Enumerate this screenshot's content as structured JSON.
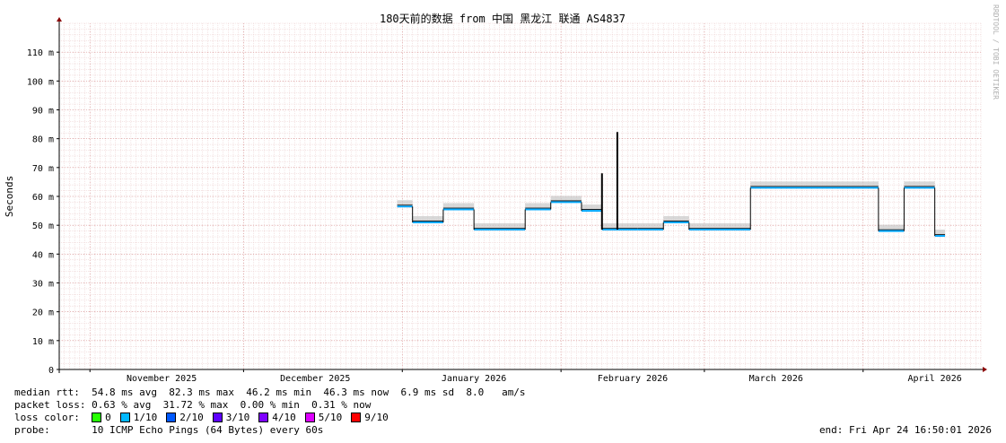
{
  "chart_data": {
    "type": "line",
    "title": "180天前的数据 from  中国 黑龙江 联通 AS4837",
    "ylabel": "Seconds",
    "watermark": "RRDTOOL / TOBI OETIKER",
    "ylim": [
      0,
      120
    ],
    "y_ticks": [
      {
        "value": 0,
        "label": "0"
      },
      {
        "value": 10,
        "label": "10 m"
      },
      {
        "value": 20,
        "label": "20 m"
      },
      {
        "value": 30,
        "label": "30 m"
      },
      {
        "value": 40,
        "label": "40 m"
      },
      {
        "value": 50,
        "label": "50 m"
      },
      {
        "value": 60,
        "label": "60 m"
      },
      {
        "value": 70,
        "label": "70 m"
      },
      {
        "value": 80,
        "label": "80 m"
      },
      {
        "value": 90,
        "label": "90 m"
      },
      {
        "value": 100,
        "label": "100 m"
      },
      {
        "value": 110,
        "label": "110 m"
      }
    ],
    "x_start": "2025-10-26",
    "x_end": "2026-04-24",
    "x_ticks": [
      {
        "date": "2025-11-15",
        "label": "November 2025"
      },
      {
        "date": "2025-12-15",
        "label": "December 2025"
      },
      {
        "date": "2026-01-15",
        "label": "January 2026"
      },
      {
        "date": "2026-02-15",
        "label": "February 2026"
      },
      {
        "date": "2026-03-15",
        "label": "March 2026"
      },
      {
        "date": "2026-04-15",
        "label": "April 2026"
      }
    ],
    "grid": true,
    "series": [
      {
        "color": "#00a8ff",
        "segments": [
          {
            "start": "2025-12-31",
            "end": "2026-01-03",
            "value": 56.5
          },
          {
            "start": "2026-01-03",
            "end": "2026-01-09",
            "value": 51
          },
          {
            "start": "2026-01-09",
            "end": "2026-01-15",
            "value": 55.5
          },
          {
            "start": "2026-01-15",
            "end": "2026-01-25",
            "value": 48.5
          },
          {
            "start": "2026-01-25",
            "end": "2026-01-30",
            "value": 55.5
          },
          {
            "start": "2026-01-30",
            "end": "2026-02-05",
            "value": 58
          },
          {
            "start": "2026-02-05",
            "end": "2026-02-09",
            "value": 55
          },
          {
            "start": "2026-02-09",
            "end": "2026-02-16",
            "value": 48.5
          },
          {
            "start": "2026-02-16",
            "end": "2026-02-21",
            "value": 48.5
          },
          {
            "start": "2026-02-21",
            "end": "2026-02-26",
            "value": 51
          },
          {
            "start": "2026-02-26",
            "end": "2026-03-10",
            "value": 48.5
          },
          {
            "start": "2026-03-10",
            "end": "2026-04-04",
            "value": 63
          },
          {
            "start": "2026-04-04",
            "end": "2026-04-09",
            "value": 48
          },
          {
            "start": "2026-04-09",
            "end": "2026-04-15",
            "value": 63
          },
          {
            "start": "2026-04-15",
            "end": "2026-04-17",
            "value": 46.3
          }
        ],
        "spikes": [
          {
            "date": "2026-02-09",
            "value": 68
          },
          {
            "date": "2026-02-12",
            "value": 82.3
          }
        ]
      }
    ]
  },
  "legend": {
    "median_rtt": {
      "label": "median rtt:",
      "text": "54.8 ms avg  82.3 ms max  46.2 ms min  46.3 ms now  6.9 ms sd  8.0   am/s"
    },
    "packet_loss": {
      "label": "packet loss:",
      "text": "0.63 % avg  31.72 % max  0.00 % min  0.31 % now"
    },
    "loss_color": {
      "label": "loss color:",
      "items": [
        {
          "label": "0",
          "color": "#26ff00"
        },
        {
          "label": "1/10",
          "color": "#00b8ff"
        },
        {
          "label": "2/10",
          "color": "#0059ff"
        },
        {
          "label": "3/10",
          "color": "#5e00ff"
        },
        {
          "label": "4/10",
          "color": "#7e00ff"
        },
        {
          "label": "5/10",
          "color": "#dd00ff"
        },
        {
          "label": "9/10",
          "color": "#ff0000"
        }
      ]
    },
    "probe": {
      "label": "probe:",
      "text": "10 ICMP Echo Pings (64 Bytes) every 60s"
    },
    "end": "end: Fri Apr 24 16:50:01 2026"
  }
}
